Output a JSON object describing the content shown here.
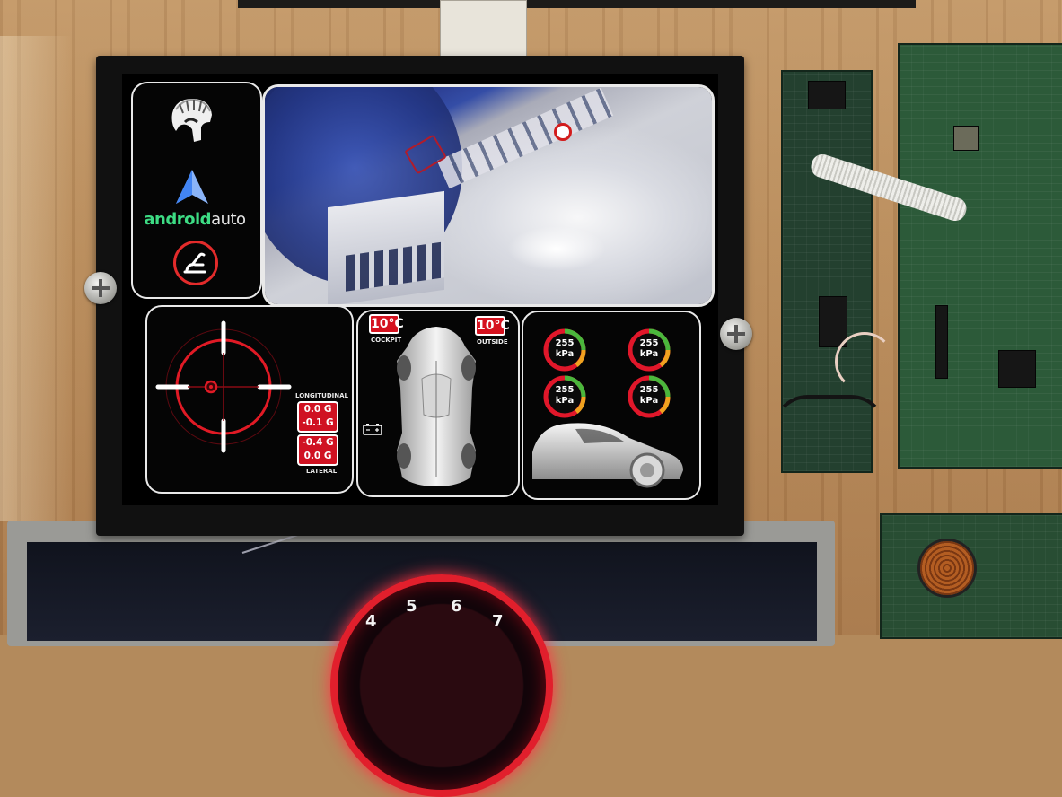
{
  "side_panel": {
    "logo_icon": "spartan-helmet-icon",
    "android_auto": {
      "brand_part1": "android",
      "brand_part2": "auto",
      "icon": "android-auto-arrow-icon"
    },
    "seat_button_icon": "seat-recline-icon",
    "accent_color": "#e32b2b"
  },
  "camera": {
    "label": "rear-camera-feed"
  },
  "gyro": {
    "longitudinal_label": "LONGITUDINAL",
    "lateral_label": "LATERAL",
    "longitudinal_values": [
      "0.0 G",
      "-0.1 G"
    ],
    "lateral_values": [
      "-0.4 G",
      "0.0 G"
    ],
    "reticle_color": "#e01a25"
  },
  "climate": {
    "cockpit_temp": "10°C",
    "cockpit_label": "COCKPIT",
    "outside_temp": "10°C",
    "outside_label": "OUTSIDE",
    "battery_icon": "battery-icon"
  },
  "tires": [
    {
      "position": "front-left",
      "value": "255",
      "unit": "kPa"
    },
    {
      "position": "front-right",
      "value": "255",
      "unit": "kPa"
    },
    {
      "position": "rear-left",
      "value": "255",
      "unit": "kPa"
    },
    {
      "position": "rear-right",
      "value": "255",
      "unit": "kPa"
    }
  ],
  "cluster": {
    "gauge_numbers": [
      "4",
      "5",
      "6",
      "7"
    ],
    "gauge_color": "#e11f2c"
  }
}
